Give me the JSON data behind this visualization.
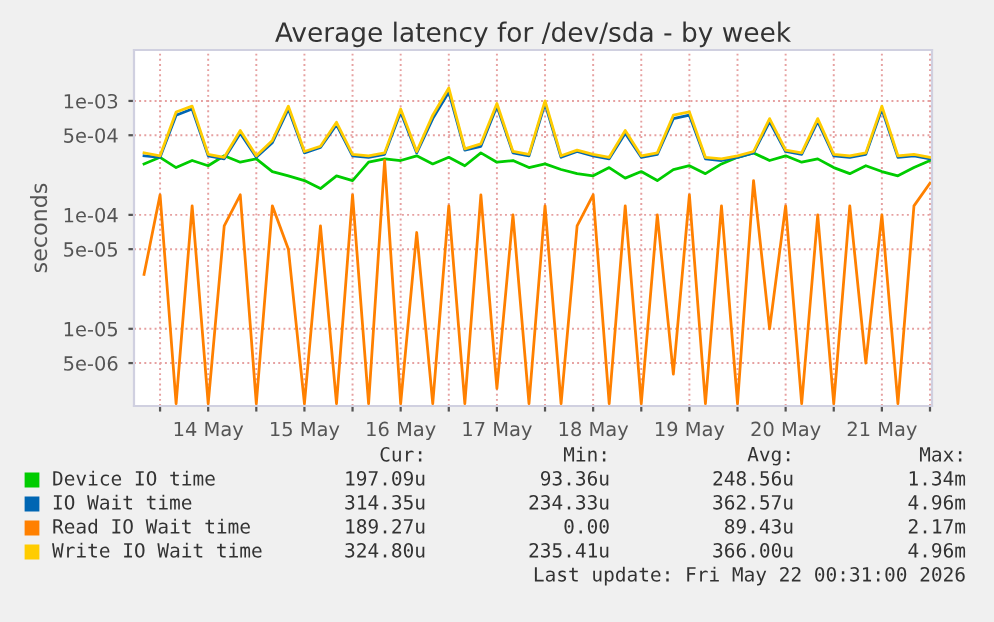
{
  "chart_data": {
    "type": "line",
    "title": "Average latency for /dev/sda - by week",
    "ylabel": "seconds",
    "log": "y",
    "x": [
      "2026-05-13T20:00",
      "2026-05-14T00:00",
      "2026-05-14T04:00",
      "2026-05-14T08:00",
      "2026-05-14T12:00",
      "2026-05-14T16:00",
      "2026-05-14T20:00",
      "2026-05-15T00:00",
      "2026-05-15T04:00",
      "2026-05-15T08:00",
      "2026-05-15T12:00",
      "2026-05-15T16:00",
      "2026-05-15T20:00",
      "2026-05-16T00:00",
      "2026-05-16T04:00",
      "2026-05-16T08:00",
      "2026-05-16T12:00",
      "2026-05-16T16:00",
      "2026-05-16T20:00",
      "2026-05-17T00:00",
      "2026-05-17T04:00",
      "2026-05-17T08:00",
      "2026-05-17T12:00",
      "2026-05-17T16:00",
      "2026-05-17T20:00",
      "2026-05-18T00:00",
      "2026-05-18T04:00",
      "2026-05-18T08:00",
      "2026-05-18T12:00",
      "2026-05-18T16:00",
      "2026-05-18T20:00",
      "2026-05-19T00:00",
      "2026-05-19T04:00",
      "2026-05-19T08:00",
      "2026-05-19T12:00",
      "2026-05-19T16:00",
      "2026-05-19T20:00",
      "2026-05-20T00:00",
      "2026-05-20T04:00",
      "2026-05-20T08:00",
      "2026-05-20T12:00",
      "2026-05-20T16:00",
      "2026-05-20T20:00",
      "2026-05-21T00:00",
      "2026-05-21T04:00",
      "2026-05-21T08:00",
      "2026-05-21T12:00",
      "2026-05-21T16:00",
      "2026-05-21T20:00",
      "2026-05-22T00:00"
    ],
    "series": [
      {
        "name": "Device IO time",
        "color": "#00cc00",
        "values": [
          0.00028,
          0.00032,
          0.00026,
          0.0003,
          0.00027,
          0.00033,
          0.00029,
          0.00031,
          0.00024,
          0.00022,
          0.0002,
          0.00017,
          0.00022,
          0.0002,
          0.00029,
          0.00031,
          0.0003,
          0.00033,
          0.00028,
          0.00032,
          0.00027,
          0.00035,
          0.00029,
          0.0003,
          0.00026,
          0.00028,
          0.00025,
          0.00023,
          0.00022,
          0.00026,
          0.00021,
          0.00024,
          0.0002,
          0.00025,
          0.00027,
          0.00023,
          0.00028,
          0.00032,
          0.00035,
          0.0003,
          0.00033,
          0.00029,
          0.00031,
          0.00026,
          0.00023,
          0.00027,
          0.00024,
          0.00022,
          0.00026,
          0.0003
        ]
      },
      {
        "name": "IO Wait time",
        "color": "#0066b3",
        "values": [
          0.00033,
          0.00032,
          0.00075,
          0.00085,
          0.00033,
          0.00031,
          0.00052,
          0.00032,
          0.00043,
          0.00085,
          0.00035,
          0.00039,
          0.00062,
          0.00033,
          0.00032,
          0.00034,
          0.0008,
          0.00035,
          0.0007,
          0.0012,
          0.00037,
          0.0004,
          0.0009,
          0.00035,
          0.00033,
          0.00095,
          0.00032,
          0.00036,
          0.00033,
          0.00031,
          0.00052,
          0.00032,
          0.00034,
          0.0007,
          0.00075,
          0.00031,
          0.0003,
          0.00032,
          0.00035,
          0.00066,
          0.00036,
          0.00034,
          0.00066,
          0.00033,
          0.00032,
          0.00034,
          0.00085,
          0.00032,
          0.00033,
          0.00031
        ]
      },
      {
        "name": "Read IO Wait time",
        "color": "#ff8000",
        "values": [
          3e-05,
          0.00015,
          2.2e-06,
          0.00012,
          2.2e-06,
          8e-05,
          0.00015,
          2.2e-06,
          0.00012,
          5e-05,
          2.2e-06,
          8e-05,
          2.2e-06,
          0.00015,
          2.2e-06,
          0.0003,
          2.2e-06,
          7e-05,
          2.2e-06,
          0.00012,
          2.2e-06,
          0.00015,
          3e-06,
          0.0001,
          2.2e-06,
          0.00012,
          2.2e-06,
          8e-05,
          0.00015,
          2.2e-06,
          0.00012,
          2.2e-06,
          0.0001,
          4e-06,
          0.00015,
          2.2e-06,
          0.00012,
          2.2e-06,
          0.0002,
          1e-05,
          0.00012,
          2.2e-06,
          0.0001,
          2.2e-06,
          0.00012,
          5e-06,
          0.0001,
          2.2e-06,
          0.00012,
          0.00019
        ]
      },
      {
        "name": "Write IO Wait time",
        "color": "#ffcc00",
        "values": [
          0.00035,
          0.00033,
          0.0008,
          0.0009,
          0.00034,
          0.00032,
          0.00055,
          0.00033,
          0.00045,
          0.0009,
          0.00036,
          0.0004,
          0.00065,
          0.00034,
          0.00033,
          0.00035,
          0.00085,
          0.00036,
          0.00075,
          0.0013,
          0.00038,
          0.00042,
          0.00095,
          0.00036,
          0.00034,
          0.001,
          0.00033,
          0.00037,
          0.00034,
          0.00032,
          0.00055,
          0.00033,
          0.00035,
          0.00075,
          0.0008,
          0.00032,
          0.00031,
          0.00033,
          0.00036,
          0.0007,
          0.00037,
          0.00035,
          0.0007,
          0.00034,
          0.00033,
          0.00035,
          0.0009,
          0.00033,
          0.00034,
          0.00032
        ]
      }
    ],
    "xlim": [
      "2026-05-13T17:30",
      "2026-05-22T00:30"
    ],
    "xticks": [
      {
        "value": "2026-05-14T00:00",
        "label": null
      },
      {
        "value": "2026-05-14T12:00",
        "label": "14 May"
      },
      {
        "value": "2026-05-15T00:00",
        "label": null
      },
      {
        "value": "2026-05-15T12:00",
        "label": "15 May"
      },
      {
        "value": "2026-05-16T00:00",
        "label": null
      },
      {
        "value": "2026-05-16T12:00",
        "label": "16 May"
      },
      {
        "value": "2026-05-17T00:00",
        "label": null
      },
      {
        "value": "2026-05-17T12:00",
        "label": "17 May"
      },
      {
        "value": "2026-05-18T00:00",
        "label": null
      },
      {
        "value": "2026-05-18T12:00",
        "label": "18 May"
      },
      {
        "value": "2026-05-19T00:00",
        "label": null
      },
      {
        "value": "2026-05-19T12:00",
        "label": "19 May"
      },
      {
        "value": "2026-05-20T00:00",
        "label": null
      },
      {
        "value": "2026-05-20T12:00",
        "label": "20 May"
      },
      {
        "value": "2026-05-21T00:00",
        "label": null
      },
      {
        "value": "2026-05-21T12:00",
        "label": "21 May"
      },
      {
        "value": "2026-05-22T00:00",
        "label": null
      }
    ],
    "ylim": [
      2.1e-06,
      0.0028
    ],
    "yticks": [
      {
        "value": 0.001,
        "label": "1e-03"
      },
      {
        "value": 0.0005,
        "label": "5e-04"
      },
      {
        "value": 0.0001,
        "label": "1e-04"
      },
      {
        "value": 5e-05,
        "label": "5e-05"
      },
      {
        "value": 1e-05,
        "label": "1e-05"
      },
      {
        "value": 5e-06,
        "label": "5e-06"
      }
    ],
    "grid": true,
    "legend": "bottom",
    "marker": "none",
    "line_style": "solid",
    "annotations": [
      "Cur:",
      "Min:",
      "Avg:",
      "Max:",
      "197.09u",
      "93.36u",
      "248.56u",
      "1.34m",
      "314.35u",
      "234.33u",
      "362.57u",
      "4.96m",
      "189.27u",
      "0.00",
      "89.43u",
      "2.17m",
      "324.80u",
      "235.41u",
      "366.00u",
      "4.96m",
      "Last update: Fri May 22 00:31:00 2026"
    ]
  }
}
